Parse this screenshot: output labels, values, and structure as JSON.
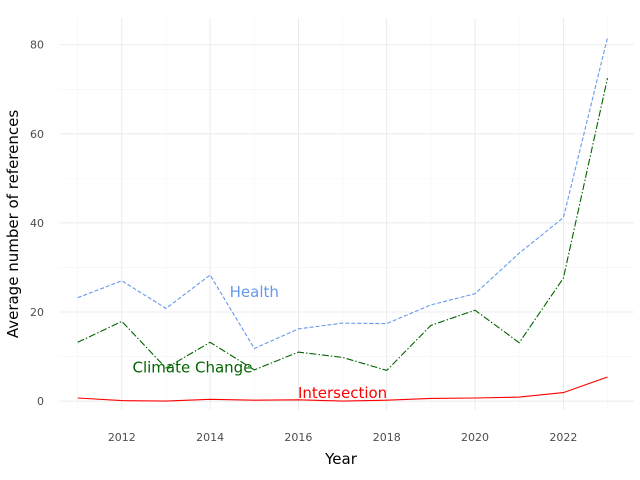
{
  "chart_data": {
    "type": "line",
    "title": "",
    "xlabel": "Year",
    "ylabel": "Average number of references",
    "x": [
      2011,
      2012,
      2013,
      2014,
      2015,
      2016,
      2017,
      2018,
      2019,
      2020,
      2021,
      2022,
      2023
    ],
    "xlim": [
      2010.6,
      2023.6
    ],
    "ylim": [
      -2,
      86
    ],
    "x_ticks": [
      2012,
      2014,
      2016,
      2018,
      2020,
      2022
    ],
    "y_ticks": [
      0,
      20,
      40,
      60,
      80
    ],
    "grid": true,
    "legend": "direct labels",
    "series": [
      {
        "name": "Health",
        "color": "#6699ee",
        "style": "dashed",
        "label_at": [
          2015.0,
          24.5
        ],
        "values": [
          23.2,
          27.0,
          20.8,
          28.3,
          11.8,
          16.2,
          17.5,
          17.4,
          21.6,
          24.1,
          33.2,
          41.2,
          81.6
        ]
      },
      {
        "name": "Climate Change",
        "color": "#006400",
        "style": "dashdot",
        "label_at": [
          2013.6,
          7.5
        ],
        "values": [
          13.2,
          17.9,
          7.4,
          13.2,
          7.0,
          11.0,
          9.8,
          6.9,
          17.0,
          20.4,
          13.1,
          27.6,
          72.5
        ]
      },
      {
        "name": "Intersection",
        "color": "#ff0000",
        "style": "solid",
        "label_at": [
          2017.0,
          1.8
        ],
        "values": [
          0.7,
          0.1,
          0.0,
          0.4,
          0.2,
          0.3,
          0.0,
          0.2,
          0.6,
          0.7,
          0.9,
          1.9,
          5.4
        ]
      }
    ]
  }
}
